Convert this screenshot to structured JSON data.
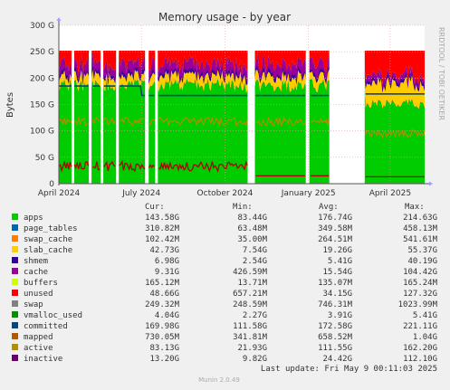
{
  "chart_data": {
    "type": "area",
    "title": "Memory usage - by year",
    "ylabel": "Bytes",
    "side_label": "RRDTOOL / TOBI OETIKER",
    "footer": "Munin 2.0.49",
    "last_update": "Last update: Fri May  9 00:11:03 2025",
    "ylim": [
      0,
      300
    ],
    "y_unit": "G",
    "y_ticks": [
      {
        "value": 0,
        "label": "0"
      },
      {
        "value": 50,
        "label": "50 G"
      },
      {
        "value": 100,
        "label": "100 G"
      },
      {
        "value": 150,
        "label": "150 G"
      },
      {
        "value": 200,
        "label": "200 G"
      },
      {
        "value": 250,
        "label": "250 G"
      },
      {
        "value": 300,
        "label": "300 G"
      }
    ],
    "x_range": [
      "2024-04-01",
      "2025-05-09"
    ],
    "x_ticks": [
      {
        "date": "2024-04-01",
        "label": "April 2024"
      },
      {
        "date": "2024-07-01",
        "label": "July 2024"
      },
      {
        "date": "2024-10-01",
        "label": "October 2024"
      },
      {
        "date": "2025-01-01",
        "label": "January 2025"
      },
      {
        "date": "2025-04-01",
        "label": "April 2025"
      }
    ],
    "gaps": [
      [
        "2024-04-15",
        "2024-04-18"
      ],
      [
        "2024-05-04",
        "2024-05-07"
      ],
      [
        "2024-05-17",
        "2024-05-20"
      ],
      [
        "2024-06-03",
        "2024-06-06"
      ],
      [
        "2024-07-05",
        "2024-07-09"
      ],
      [
        "2024-07-16",
        "2024-07-19"
      ],
      [
        "2024-10-26",
        "2024-11-03"
      ],
      [
        "2024-12-29",
        "2025-01-02"
      ],
      [
        "2025-01-24",
        "2025-03-04"
      ]
    ],
    "legend_headers": [
      "Cur:",
      "Min:",
      "Avg:",
      "Max:"
    ],
    "series": [
      {
        "name": "apps",
        "color": "#00cc00",
        "cur": "143.58G",
        "min": "83.44G",
        "avg": "176.74G",
        "max": "214.63G"
      },
      {
        "name": "page_tables",
        "color": "#0066b3",
        "cur": "310.82M",
        "min": "63.48M",
        "avg": "349.58M",
        "max": "458.13M"
      },
      {
        "name": "swap_cache",
        "color": "#ff8000",
        "cur": "102.42M",
        "min": "35.00M",
        "avg": "264.51M",
        "max": "541.61M"
      },
      {
        "name": "slab_cache",
        "color": "#ffcc00",
        "cur": "42.73G",
        "min": "7.54G",
        "avg": "19.26G",
        "max": "55.37G"
      },
      {
        "name": "shmem",
        "color": "#330099",
        "cur": "6.98G",
        "min": "2.54G",
        "avg": "5.41G",
        "max": "40.19G"
      },
      {
        "name": "cache",
        "color": "#990099",
        "cur": "9.31G",
        "min": "426.59M",
        "avg": "15.54G",
        "max": "104.42G"
      },
      {
        "name": "buffers",
        "color": "#ccff00",
        "cur": "165.12M",
        "min": "13.71M",
        "avg": "135.07M",
        "max": "165.24M"
      },
      {
        "name": "unused",
        "color": "#ff0000",
        "cur": "48.66G",
        "min": "657.21M",
        "avg": "34.15G",
        "max": "127.32G"
      },
      {
        "name": "swap",
        "color": "#808080",
        "cur": "249.32M",
        "min": "248.59M",
        "avg": "746.31M",
        "max": "1023.99M"
      },
      {
        "name": "vmalloc_used",
        "color": "#008f00",
        "cur": "4.04G",
        "min": "2.27G",
        "avg": "3.91G",
        "max": "5.41G"
      },
      {
        "name": "committed",
        "color": "#00487d",
        "cur": "169.98G",
        "min": "111.58G",
        "avg": "172.58G",
        "max": "221.11G"
      },
      {
        "name": "mapped",
        "color": "#b35a00",
        "cur": "730.05M",
        "min": "341.81M",
        "avg": "658.52M",
        "max": "1.04G"
      },
      {
        "name": "active",
        "color": "#b38f00",
        "cur": "83.13G",
        "min": "21.93G",
        "avg": "111.55G",
        "max": "162.20G"
      },
      {
        "name": "inactive",
        "color": "#6b006b",
        "cur": "13.20G",
        "min": "9.82G",
        "avg": "24.42G",
        "max": "112.10G"
      }
    ]
  }
}
